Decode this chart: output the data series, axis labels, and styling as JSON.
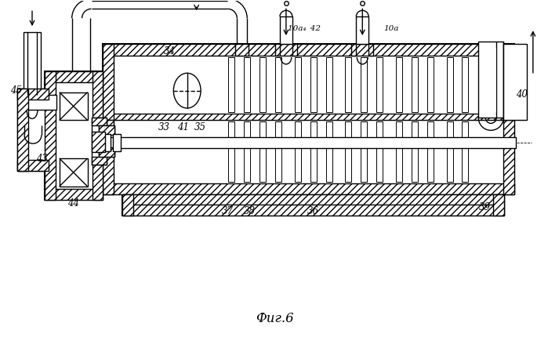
{
  "title": "Фиг.6",
  "bg_color": "#ffffff",
  "lc": "#000000",
  "lw": 1.0,
  "lw2": 1.5,
  "figsize": [
    6.99,
    4.3
  ],
  "dpi": 100,
  "xlim": [
    0,
    699
  ],
  "ylim": [
    0,
    430
  ]
}
